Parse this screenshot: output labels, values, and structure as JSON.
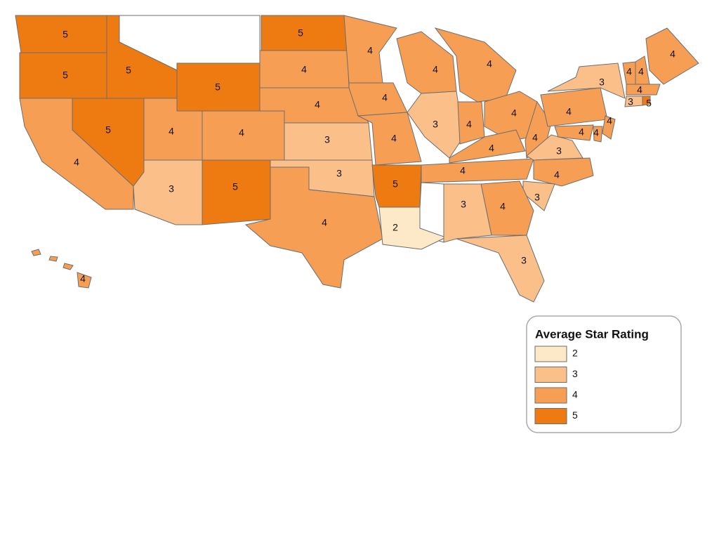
{
  "map": {
    "regions": [
      5,
      5,
      5,
      5,
      5,
      4,
      4,
      5,
      4,
      4,
      4,
      3,
      5,
      3,
      3,
      4,
      4,
      4,
      4,
      5,
      2,
      4,
      3,
      4,
      4,
      4,
      4,
      4,
      4,
      3,
      4,
      3,
      4,
      3,
      3,
      4,
      3,
      4,
      4,
      4,
      4,
      4,
      4,
      4,
      3,
      5,
      4
    ],
    "legend": {
      "title": "Average Star Rating",
      "classes": [
        {
          "value": 2,
          "color": "#fde8c8"
        },
        {
          "value": 3,
          "color": "#fbc08a"
        },
        {
          "value": 4,
          "color": "#f79e55"
        },
        {
          "value": 5,
          "color": "#ee7a12"
        }
      ]
    }
  }
}
